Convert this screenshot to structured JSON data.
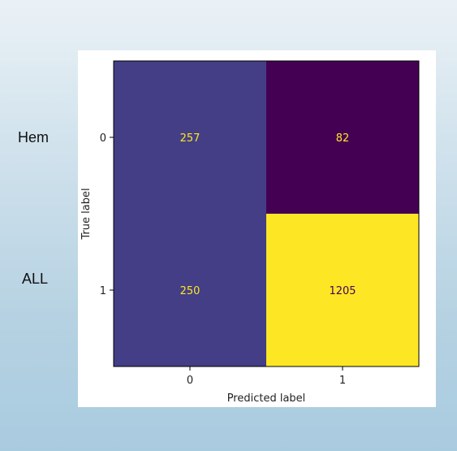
{
  "side_labels": {
    "top": "Hem",
    "bottom": "ALL"
  },
  "chart_data": {
    "type": "heatmap",
    "title": "",
    "xlabel": "Predicted label",
    "ylabel": "True label",
    "x_categories": [
      "0",
      "1"
    ],
    "y_categories": [
      "0",
      "1"
    ],
    "values": [
      [
        257,
        82
      ],
      [
        250,
        1205
      ]
    ],
    "colormap": "viridis",
    "cell_colors": [
      [
        "#433e85",
        "#440154"
      ],
      [
        "#433e85",
        "#fde725"
      ]
    ],
    "text_colors": [
      [
        "#fde725",
        "#fde725"
      ],
      [
        "#fde725",
        "#440154"
      ]
    ],
    "grid": false,
    "legend": "none"
  }
}
